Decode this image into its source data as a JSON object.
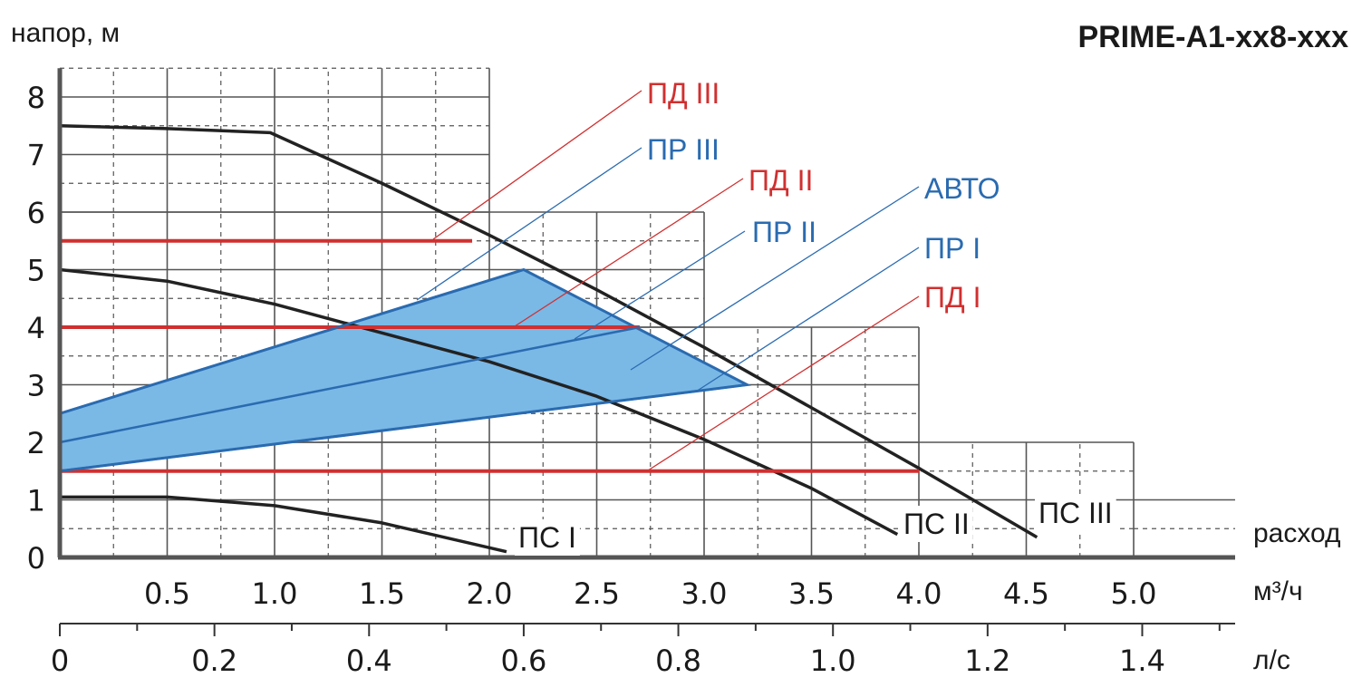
{
  "chart_data": {
    "type": "line",
    "title": "PRIME-A1-xx8-xxx",
    "ylabel": "напор, м",
    "xlabel": "расход",
    "x_unit_primary": "м³/ч",
    "x_unit_secondary": "л/с",
    "ylim": [
      0,
      8.5
    ],
    "xlim": [
      0,
      5.5
    ],
    "grid": true,
    "y_ticks": [
      "0",
      "1",
      "2",
      "3",
      "4",
      "5",
      "6",
      "7",
      "8"
    ],
    "x_ticks_primary": [
      "0.5",
      "1.0",
      "1.5",
      "2.0",
      "2.5",
      "3.0",
      "3.5",
      "4.0",
      "4.5",
      "5.0"
    ],
    "x_ticks_secondary": [
      "0",
      "0.2",
      "0.4",
      "0.6",
      "0.8",
      "1.0",
      "1.2",
      "1.4"
    ],
    "colors": {
      "constant_pressure": "#d03030",
      "proportional_pressure": "#2a6bb0",
      "auto_area": "#7ab8e6",
      "curves": "#222222"
    },
    "series": [
      {
        "name": "ПС I",
        "kind": "curve",
        "x": [
          0,
          0.5,
          1.0,
          1.5,
          2.08
        ],
        "y": [
          1.05,
          1.05,
          0.9,
          0.6,
          0.1
        ]
      },
      {
        "name": "ПС II",
        "kind": "curve",
        "x": [
          0,
          0.5,
          1.0,
          1.5,
          2.0,
          2.5,
          3.0,
          3.5,
          3.9
        ],
        "y": [
          5.0,
          4.8,
          4.4,
          3.9,
          3.4,
          2.8,
          2.05,
          1.2,
          0.4
        ]
      },
      {
        "name": "ПС III",
        "kind": "curve",
        "x": [
          0,
          0.5,
          0.98,
          1.5,
          2.0,
          2.5,
          3.0,
          3.5,
          4.0,
          4.55
        ],
        "y": [
          7.5,
          7.45,
          7.38,
          6.5,
          5.6,
          4.65,
          3.65,
          2.6,
          1.55,
          0.35
        ]
      },
      {
        "name": "ПД III",
        "kind": "constant",
        "x": [
          0,
          1.92
        ],
        "y": [
          5.5,
          5.5
        ]
      },
      {
        "name": "ПД II",
        "kind": "constant",
        "x": [
          0,
          2.7
        ],
        "y": [
          4.0,
          4.0
        ]
      },
      {
        "name": "ПД I",
        "kind": "constant",
        "x": [
          0,
          4.0
        ],
        "y": [
          1.5,
          1.5
        ]
      },
      {
        "name": "ПР III",
        "kind": "proportional",
        "x": [
          0,
          2.16
        ],
        "y": [
          2.5,
          5.0
        ]
      },
      {
        "name": "ПР II",
        "kind": "proportional",
        "x": [
          0,
          2.7
        ],
        "y": [
          2.0,
          4.0
        ]
      },
      {
        "name": "ПР I",
        "kind": "proportional",
        "x": [
          0,
          3.2
        ],
        "y": [
          1.5,
          3.0
        ]
      },
      {
        "name": "АВТО",
        "kind": "area",
        "x": [
          0,
          2.16,
          3.2,
          0
        ],
        "y": [
          2.5,
          5.0,
          3.0,
          1.5
        ]
      }
    ]
  }
}
